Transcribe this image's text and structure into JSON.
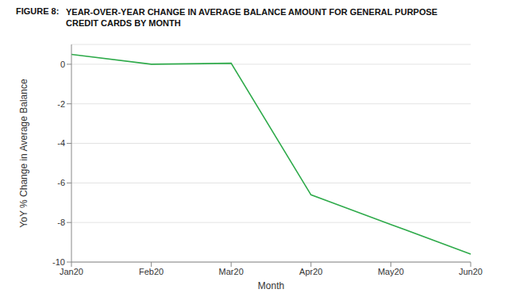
{
  "chart_data": {
    "type": "line",
    "figure_label": "FIGURE 8:",
    "title": "YEAR-OVER-YEAR CHANGE IN AVERAGE BALANCE AMOUNT FOR GENERAL PURPOSE CREDIT CARDS BY MONTH",
    "x_label": "Month",
    "y_label": "YoY % Change in Average Balance",
    "categories": [
      "Jan20",
      "Feb20",
      "Mar20",
      "Apr20",
      "May20",
      "Jun20"
    ],
    "values": [
      0.5,
      0.0,
      0.05,
      -6.6,
      -8.1,
      -9.6
    ],
    "color": "#2eaa4a",
    "ylim": [
      -10,
      1
    ],
    "yticks": [
      -10,
      -8,
      -6,
      -4,
      -2,
      0
    ],
    "grid": true
  }
}
